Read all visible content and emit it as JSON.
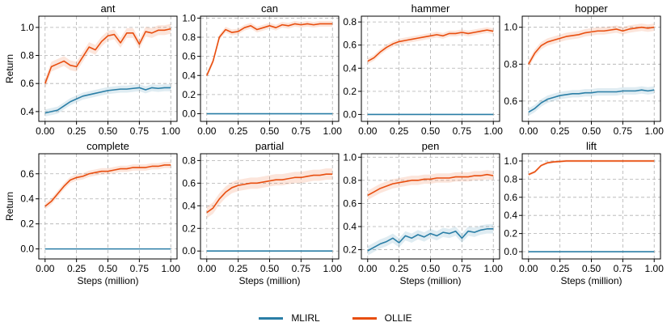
{
  "chart_data": [
    {
      "type": "line",
      "title": "ant",
      "xlabel": "",
      "ylabel": "Return",
      "xlim": [
        -0.05,
        1.05
      ],
      "ylim": [
        0.33,
        1.08
      ],
      "xticks": [
        "0.00",
        "0.25",
        "0.50",
        "0.75",
        "1.00"
      ],
      "yticks": [
        0.4,
        0.6,
        0.8,
        1.0
      ],
      "ytick_labels": [
        "0.4",
        "0.6",
        "0.8",
        "1.0"
      ],
      "grid": true,
      "x": [
        0,
        0.05,
        0.1,
        0.15,
        0.2,
        0.25,
        0.3,
        0.35,
        0.4,
        0.45,
        0.5,
        0.55,
        0.6,
        0.65,
        0.7,
        0.75,
        0.8,
        0.85,
        0.9,
        0.95,
        1.0
      ],
      "series": [
        {
          "name": "MLIRL",
          "color": "#2a7ea6",
          "band": 0.025,
          "values": [
            0.39,
            0.4,
            0.41,
            0.44,
            0.47,
            0.49,
            0.51,
            0.52,
            0.53,
            0.54,
            0.55,
            0.555,
            0.56,
            0.56,
            0.565,
            0.57,
            0.555,
            0.57,
            0.565,
            0.57,
            0.57
          ]
        },
        {
          "name": "OLLIE",
          "color": "#e84e0f",
          "band": 0.035,
          "values": [
            0.6,
            0.72,
            0.74,
            0.76,
            0.73,
            0.72,
            0.79,
            0.86,
            0.84,
            0.9,
            0.94,
            0.95,
            0.89,
            0.96,
            0.96,
            0.88,
            0.97,
            0.96,
            0.98,
            0.98,
            0.99
          ]
        }
      ]
    },
    {
      "type": "line",
      "title": "can",
      "xlabel": "",
      "ylabel": "",
      "xlim": [
        -0.05,
        1.05
      ],
      "ylim": [
        -0.08,
        1.02
      ],
      "xticks": [
        "0.00",
        "0.25",
        "0.50",
        "0.75",
        "1.00"
      ],
      "yticks": [
        0,
        0.2,
        0.4,
        0.6,
        0.8,
        1.0
      ],
      "ytick_labels": [
        "0.0",
        "0.2",
        "0.4",
        "0.6",
        "0.8",
        "1.0"
      ],
      "grid": true,
      "x": [
        0,
        0.05,
        0.1,
        0.15,
        0.2,
        0.25,
        0.3,
        0.35,
        0.4,
        0.45,
        0.5,
        0.55,
        0.6,
        0.65,
        0.7,
        0.75,
        0.8,
        0.85,
        0.9,
        0.95,
        1.0
      ],
      "series": [
        {
          "name": "MLIRL",
          "color": "#2a7ea6",
          "band": 0,
          "values": [
            0,
            0,
            0,
            0,
            0,
            0,
            0,
            0,
            0,
            0,
            0,
            0,
            0,
            0,
            0,
            0,
            0,
            0,
            0,
            0,
            0
          ]
        },
        {
          "name": "OLLIE",
          "color": "#e84e0f",
          "band": 0.03,
          "values": [
            0.4,
            0.55,
            0.8,
            0.88,
            0.85,
            0.86,
            0.9,
            0.92,
            0.88,
            0.9,
            0.92,
            0.9,
            0.93,
            0.92,
            0.94,
            0.93,
            0.94,
            0.93,
            0.94,
            0.94,
            0.94
          ]
        }
      ]
    },
    {
      "type": "line",
      "title": "hammer",
      "xlabel": "",
      "ylabel": "",
      "xlim": [
        -0.05,
        1.05
      ],
      "ylim": [
        -0.06,
        0.85
      ],
      "xticks": [
        "0.00",
        "0.25",
        "0.50",
        "0.75",
        "1.00"
      ],
      "yticks": [
        0,
        0.2,
        0.4,
        0.6,
        0.8
      ],
      "ytick_labels": [
        "0.0",
        "0.2",
        "0.4",
        "0.6",
        "0.8"
      ],
      "grid": true,
      "x": [
        0,
        0.05,
        0.1,
        0.15,
        0.2,
        0.25,
        0.3,
        0.35,
        0.4,
        0.45,
        0.5,
        0.55,
        0.6,
        0.65,
        0.7,
        0.75,
        0.8,
        0.85,
        0.9,
        0.95,
        1.0
      ],
      "series": [
        {
          "name": "MLIRL",
          "color": "#2a7ea6",
          "band": 0,
          "values": [
            0,
            0,
            0,
            0,
            0,
            0,
            0,
            0,
            0,
            0,
            0,
            0,
            0,
            0,
            0,
            0,
            0,
            0,
            0,
            0,
            0
          ]
        },
        {
          "name": "OLLIE",
          "color": "#e84e0f",
          "band": 0.025,
          "values": [
            0.46,
            0.49,
            0.54,
            0.58,
            0.61,
            0.63,
            0.64,
            0.65,
            0.66,
            0.67,
            0.68,
            0.69,
            0.68,
            0.7,
            0.7,
            0.71,
            0.7,
            0.71,
            0.72,
            0.73,
            0.72
          ]
        }
      ]
    },
    {
      "type": "line",
      "title": "hopper",
      "xlabel": "",
      "ylabel": "",
      "xlim": [
        -0.05,
        1.05
      ],
      "ylim": [
        0.49,
        1.06
      ],
      "xticks": [
        "0.00",
        "0.25",
        "0.50",
        "0.75",
        "1.00"
      ],
      "yticks": [
        0.6,
        0.8,
        1.0
      ],
      "ytick_labels": [
        "0.6",
        "0.8",
        "1.0"
      ],
      "grid": true,
      "x": [
        0,
        0.05,
        0.1,
        0.15,
        0.2,
        0.25,
        0.3,
        0.35,
        0.4,
        0.45,
        0.5,
        0.55,
        0.6,
        0.65,
        0.7,
        0.75,
        0.8,
        0.85,
        0.9,
        0.95,
        1.0
      ],
      "series": [
        {
          "name": "MLIRL",
          "color": "#2a7ea6",
          "band": 0.02,
          "values": [
            0.54,
            0.56,
            0.59,
            0.61,
            0.62,
            0.63,
            0.635,
            0.64,
            0.64,
            0.645,
            0.645,
            0.65,
            0.65,
            0.65,
            0.65,
            0.655,
            0.655,
            0.655,
            0.66,
            0.655,
            0.66
          ]
        },
        {
          "name": "OLLIE",
          "color": "#e84e0f",
          "band": 0.02,
          "values": [
            0.8,
            0.86,
            0.9,
            0.92,
            0.93,
            0.94,
            0.95,
            0.955,
            0.96,
            0.97,
            0.975,
            0.98,
            0.98,
            0.985,
            0.99,
            0.98,
            0.99,
            0.995,
            1.0,
            0.995,
            1.0
          ]
        }
      ]
    },
    {
      "type": "line",
      "title": "complete",
      "xlabel": "Steps (million)",
      "ylabel": "Return",
      "xlim": [
        -0.05,
        1.05
      ],
      "ylim": [
        -0.08,
        0.76
      ],
      "xticks": [
        "0.00",
        "0.25",
        "0.50",
        "0.75",
        "1.00"
      ],
      "yticks": [
        0,
        0.2,
        0.4,
        0.6
      ],
      "ytick_labels": [
        "0.0",
        "0.2",
        "0.4",
        "0.6"
      ],
      "grid": true,
      "x": [
        0,
        0.05,
        0.1,
        0.15,
        0.2,
        0.25,
        0.3,
        0.35,
        0.4,
        0.45,
        0.5,
        0.55,
        0.6,
        0.65,
        0.7,
        0.75,
        0.8,
        0.85,
        0.9,
        0.95,
        1.0
      ],
      "series": [
        {
          "name": "MLIRL",
          "color": "#2a7ea6",
          "band": 0,
          "values": [
            0,
            0,
            0,
            0,
            0,
            0,
            0,
            0,
            0,
            0,
            0,
            0,
            0,
            0,
            0,
            0,
            0,
            0,
            0,
            0,
            0
          ]
        },
        {
          "name": "OLLIE",
          "color": "#e84e0f",
          "band": 0.025,
          "values": [
            0.34,
            0.38,
            0.44,
            0.5,
            0.55,
            0.57,
            0.58,
            0.6,
            0.61,
            0.62,
            0.62,
            0.63,
            0.64,
            0.64,
            0.65,
            0.65,
            0.65,
            0.66,
            0.66,
            0.67,
            0.67
          ]
        }
      ]
    },
    {
      "type": "line",
      "title": "partial",
      "xlabel": "Steps (million)",
      "ylabel": "",
      "xlim": [
        -0.05,
        1.05
      ],
      "ylim": [
        -0.07,
        0.86
      ],
      "xticks": [
        "0.00",
        "0.25",
        "0.50",
        "0.75",
        "1.00"
      ],
      "yticks": [
        0,
        0.2,
        0.4,
        0.6,
        0.8
      ],
      "ytick_labels": [
        "0.0",
        "0.2",
        "0.4",
        "0.6",
        "0.8"
      ],
      "grid": true,
      "x": [
        0,
        0.05,
        0.1,
        0.15,
        0.2,
        0.25,
        0.3,
        0.35,
        0.4,
        0.45,
        0.5,
        0.55,
        0.6,
        0.65,
        0.7,
        0.75,
        0.8,
        0.85,
        0.9,
        0.95,
        1.0
      ],
      "series": [
        {
          "name": "MLIRL",
          "color": "#2a7ea6",
          "band": 0,
          "values": [
            0,
            0,
            0,
            0,
            0,
            0,
            0,
            0,
            0,
            0,
            0,
            0,
            0,
            0,
            0,
            0,
            0,
            0,
            0,
            0,
            0
          ]
        },
        {
          "name": "OLLIE",
          "color": "#e84e0f",
          "band": 0.05,
          "values": [
            0.34,
            0.38,
            0.46,
            0.52,
            0.56,
            0.58,
            0.59,
            0.6,
            0.6,
            0.61,
            0.62,
            0.63,
            0.63,
            0.64,
            0.65,
            0.65,
            0.66,
            0.67,
            0.67,
            0.68,
            0.68
          ]
        }
      ]
    },
    {
      "type": "line",
      "title": "pen",
      "xlabel": "Steps (million)",
      "ylabel": "",
      "xlim": [
        -0.05,
        1.05
      ],
      "ylim": [
        0.12,
        1.03
      ],
      "xticks": [
        "0.00",
        "0.25",
        "0.50",
        "0.75",
        "1.00"
      ],
      "yticks": [
        0.2,
        0.4,
        0.6,
        0.8,
        1.0
      ],
      "ytick_labels": [
        "0.2",
        "0.4",
        "0.6",
        "0.8",
        "1.0"
      ],
      "grid": true,
      "x": [
        0,
        0.05,
        0.1,
        0.15,
        0.2,
        0.25,
        0.3,
        0.35,
        0.4,
        0.45,
        0.5,
        0.55,
        0.6,
        0.65,
        0.7,
        0.75,
        0.8,
        0.85,
        0.9,
        0.95,
        1.0
      ],
      "series": [
        {
          "name": "MLIRL",
          "color": "#2a7ea6",
          "band": 0.04,
          "values": [
            0.19,
            0.22,
            0.25,
            0.27,
            0.3,
            0.26,
            0.32,
            0.3,
            0.33,
            0.31,
            0.34,
            0.32,
            0.35,
            0.34,
            0.36,
            0.3,
            0.36,
            0.35,
            0.37,
            0.38,
            0.38
          ]
        },
        {
          "name": "OLLIE",
          "color": "#e84e0f",
          "band": 0.04,
          "values": [
            0.67,
            0.7,
            0.73,
            0.75,
            0.77,
            0.78,
            0.79,
            0.8,
            0.8,
            0.81,
            0.81,
            0.82,
            0.82,
            0.82,
            0.83,
            0.83,
            0.83,
            0.84,
            0.84,
            0.85,
            0.84
          ]
        }
      ]
    },
    {
      "type": "line",
      "title": "lift",
      "xlabel": "Steps (million)",
      "ylabel": "",
      "xlim": [
        -0.05,
        1.05
      ],
      "ylim": [
        -0.08,
        1.08
      ],
      "xticks": [
        "0.00",
        "0.25",
        "0.50",
        "0.75",
        "1.00"
      ],
      "yticks": [
        0,
        0.2,
        0.4,
        0.6,
        0.8,
        1.0
      ],
      "ytick_labels": [
        "0.0",
        "0.2",
        "0.4",
        "0.6",
        "0.8",
        "1.0"
      ],
      "grid": true,
      "x": [
        0,
        0.05,
        0.1,
        0.15,
        0.2,
        0.25,
        0.3,
        0.35,
        0.4,
        0.45,
        0.5,
        0.55,
        0.6,
        0.65,
        0.7,
        0.75,
        0.8,
        0.85,
        0.9,
        0.95,
        1.0
      ],
      "series": [
        {
          "name": "MLIRL",
          "color": "#2a7ea6",
          "band": 0,
          "values": [
            0,
            0,
            0,
            0,
            0,
            0,
            0,
            0,
            0,
            0,
            0,
            0,
            0,
            0,
            0,
            0,
            0,
            0,
            0,
            0,
            0
          ]
        },
        {
          "name": "OLLIE",
          "color": "#e84e0f",
          "band": 0.015,
          "values": [
            0.85,
            0.88,
            0.95,
            0.98,
            0.99,
            0.995,
            1.0,
            1.0,
            1.0,
            1.0,
            1.0,
            1.0,
            1.0,
            1.0,
            1.0,
            1.0,
            1.0,
            1.0,
            1.0,
            1.0,
            1.0
          ]
        }
      ]
    }
  ],
  "legend": {
    "placement": "bottom-center",
    "items": [
      {
        "label": "MLIRL",
        "color": "#2a7ea6"
      },
      {
        "label": "OLLIE",
        "color": "#e84e0f"
      }
    ]
  }
}
